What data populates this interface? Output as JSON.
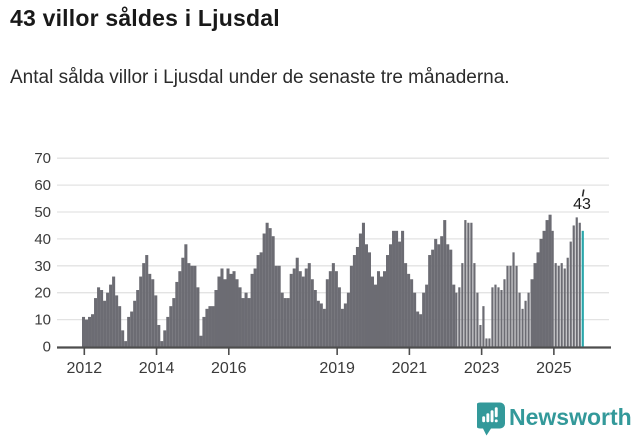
{
  "page": {
    "title": "43 villor såldes i Ljusdal",
    "subtitle": "Antal sålda villor i Ljusdal under de senaste tre månaderna."
  },
  "annotation": {
    "label": "43"
  },
  "branding": {
    "name": "Newsworthy",
    "icon": "newsworthy-speech-bubble-chart-icon"
  },
  "colors": {
    "bar": "#6c6c73",
    "highlight": "#29a6aa",
    "brand": "#33999a",
    "grid": "#e3e3e3",
    "axis": "#4d4d4d",
    "tick_text": "#3a3a3a",
    "title_text": "#191919"
  },
  "chart_data": {
    "type": "bar",
    "title": "43 villor såldes i Ljusdal",
    "subtitle": "Antal sålda villor i Ljusdal under de senaste tre månaderna.",
    "ylabel": "",
    "xlabel": "",
    "x_start_month": "2011-12",
    "x_end_month": "2025-10",
    "grid": true,
    "ylim": [
      0,
      74
    ],
    "yticks": [
      0,
      10,
      20,
      30,
      40,
      50,
      60,
      70
    ],
    "xticks": [
      2012,
      2014,
      2016,
      2019,
      2021,
      2023,
      2025
    ],
    "highlight_last_bar": true,
    "annotation_value": 43,
    "values": [
      11,
      10,
      11,
      12,
      18,
      22,
      21,
      17,
      20,
      23,
      26,
      19,
      15,
      6,
      2,
      11,
      13,
      17,
      21,
      26,
      31,
      34,
      27,
      25,
      19,
      8,
      2,
      6,
      11,
      15,
      18,
      24,
      28,
      33,
      38,
      31,
      30,
      30,
      22,
      4,
      11,
      14,
      15,
      15,
      21,
      26,
      29,
      25,
      29,
      27,
      28,
      25,
      22,
      18,
      20,
      18,
      27,
      29,
      34,
      35,
      42,
      46,
      44,
      41,
      30,
      30,
      20,
      18,
      18,
      27,
      29,
      33,
      28,
      26,
      29,
      31,
      25,
      21,
      17,
      16,
      14,
      25,
      28,
      31,
      28,
      22,
      14,
      16,
      20,
      30,
      34,
      37,
      42,
      46,
      38,
      35,
      26,
      23,
      28,
      26,
      28,
      34,
      38,
      43,
      43,
      39,
      43,
      31,
      27,
      25,
      20,
      13,
      12,
      20,
      23,
      34,
      36,
      40,
      38,
      41,
      47,
      38,
      36,
      23,
      20,
      22,
      31,
      47,
      46,
      46,
      31,
      20,
      8,
      15,
      3,
      3,
      22,
      23,
      22,
      21,
      25,
      30,
      30,
      35,
      30,
      20,
      14,
      17,
      20,
      25,
      31,
      35,
      40,
      43,
      47,
      49,
      43,
      31,
      30,
      31,
      29,
      33,
      39,
      45,
      48,
      46,
      43
    ]
  }
}
